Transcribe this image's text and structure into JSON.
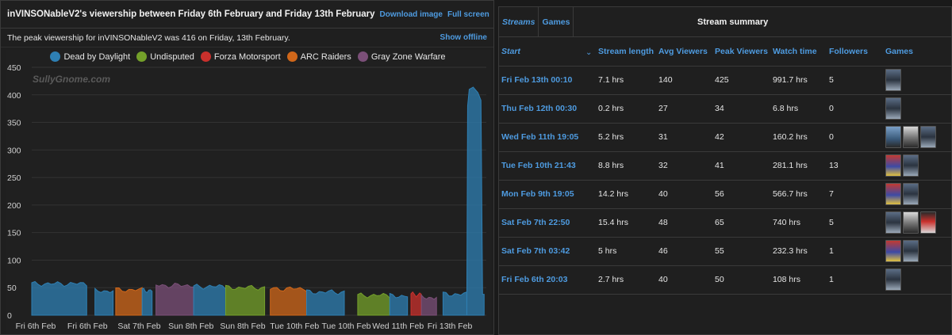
{
  "left": {
    "title": "inVINSONableV2's viewership between Friday 6th February and Friday 13th February",
    "download_label": "Download image",
    "fullscreen_label": "Full screen",
    "peak_text": "The peak viewership for inVINSONableV2 was 416 on Friday, 13th February.",
    "show_offline_label": "Show offline",
    "watermark": "SullyGnome.com"
  },
  "chart_data": {
    "type": "area",
    "ylim": [
      0,
      450
    ],
    "y_ticks": [
      0,
      50,
      100,
      150,
      200,
      250,
      300,
      350,
      400,
      450
    ],
    "x_tick_labels": [
      "Fri 6th Feb",
      "Fri 6th Feb",
      "Sat 7th Feb",
      "Sun 8th Feb",
      "Sun 8th Feb",
      "Tue 10th Feb",
      "Tue 10th Feb",
      "Wed 11th Feb",
      "Fri 13th Feb"
    ],
    "legend": [
      {
        "name": "Dead by Daylight",
        "color": "#2e7fb3"
      },
      {
        "name": "Undisputed",
        "color": "#74a02a"
      },
      {
        "name": "Forza Motorsport",
        "color": "#c9302c"
      },
      {
        "name": "ARC Raiders",
        "color": "#d0671a"
      },
      {
        "name": "Gray Zone Warfare",
        "color": "#7b4f78"
      }
    ],
    "segments": [
      {
        "game": "Dead by Daylight",
        "t_start": 0.0,
        "t_end": 12.7,
        "avg": 57
      },
      {
        "game": "Dead by Daylight",
        "t_start": 14.6,
        "t_end": 18.8,
        "avg": 44
      },
      {
        "game": "ARC Raiders",
        "t_start": 19.4,
        "t_end": 25.5,
        "avg": 46
      },
      {
        "game": "Dead by Daylight",
        "t_start": 25.5,
        "t_end": 27.8,
        "avg": 45
      },
      {
        "game": "Gray Zone Warfare",
        "t_start": 28.7,
        "t_end": 37.4,
        "avg": 54
      },
      {
        "game": "Dead by Daylight",
        "t_start": 37.4,
        "t_end": 44.8,
        "avg": 52
      },
      {
        "game": "Undisputed",
        "t_start": 44.8,
        "t_end": 53.8,
        "avg": 50
      },
      {
        "game": "ARC Raiders",
        "t_start": 55.1,
        "t_end": 63.5,
        "avg": 48
      },
      {
        "game": "Dead by Daylight",
        "t_start": 63.5,
        "t_end": 72.2,
        "avg": 42
      },
      {
        "game": "Undisputed",
        "t_start": 75.3,
        "t_end": 82.7,
        "avg": 36
      },
      {
        "game": "Dead by Daylight",
        "t_start": 82.7,
        "t_end": 86.8,
        "avg": 35
      },
      {
        "game": "Forza Motorsport",
        "t_start": 87.6,
        "t_end": 90.0,
        "avg": 38
      },
      {
        "game": "Gray Zone Warfare",
        "t_start": 90.0,
        "t_end": 93.5,
        "avg": 32
      },
      {
        "game": "Dead by Daylight",
        "t_start": 95.0,
        "t_end": 100.5,
        "avg": 38
      },
      {
        "game": "Dead by Daylight",
        "t_start": 100.5,
        "t_end": 104.5,
        "avg": 410,
        "spike": true
      }
    ],
    "t_max": 105
  },
  "right": {
    "tabs": [
      "Streams",
      "Games"
    ],
    "summary_title": "Stream summary",
    "columns": [
      "Start",
      "Stream length",
      "Avg Viewers",
      "Peak Viewers",
      "Watch time",
      "Followers",
      "Games"
    ],
    "rows": [
      {
        "start": "Fri Feb 13th 00:10",
        "length": "7.1 hrs",
        "avg": "140",
        "peak": "425",
        "watch": "991.7 hrs",
        "followers": "5",
        "games": [
          "dbd"
        ]
      },
      {
        "start": "Thu Feb 12th 00:30",
        "length": "0.2 hrs",
        "avg": "27",
        "peak": "34",
        "watch": "6.8 hrs",
        "followers": "0",
        "games": [
          "dbd"
        ]
      },
      {
        "start": "Wed Feb 11th 19:05",
        "length": "5.2 hrs",
        "avg": "31",
        "peak": "42",
        "watch": "160.2 hrs",
        "followers": "0",
        "games": [
          "forza",
          "gray",
          "dbd"
        ]
      },
      {
        "start": "Tue Feb 10th 21:43",
        "length": "8.8 hrs",
        "avg": "32",
        "peak": "41",
        "watch": "281.1 hrs",
        "followers": "13",
        "games": [
          "undis",
          "dbd"
        ]
      },
      {
        "start": "Mon Feb 9th 19:05",
        "length": "14.2 hrs",
        "avg": "40",
        "peak": "56",
        "watch": "566.7 hrs",
        "followers": "7",
        "games": [
          "undis",
          "dbd"
        ]
      },
      {
        "start": "Sat Feb 7th 22:50",
        "length": "15.4 hrs",
        "avg": "48",
        "peak": "65",
        "watch": "740 hrs",
        "followers": "5",
        "games": [
          "dbd",
          "gray",
          "arc"
        ]
      },
      {
        "start": "Sat Feb 7th 03:42",
        "length": "5 hrs",
        "avg": "46",
        "peak": "55",
        "watch": "232.3 hrs",
        "followers": "1",
        "games": [
          "undis",
          "dbd"
        ]
      },
      {
        "start": "Fri Feb 6th 20:03",
        "length": "2.7 hrs",
        "avg": "40",
        "peak": "50",
        "watch": "108 hrs",
        "followers": "1",
        "games": [
          "dbd"
        ]
      }
    ]
  }
}
